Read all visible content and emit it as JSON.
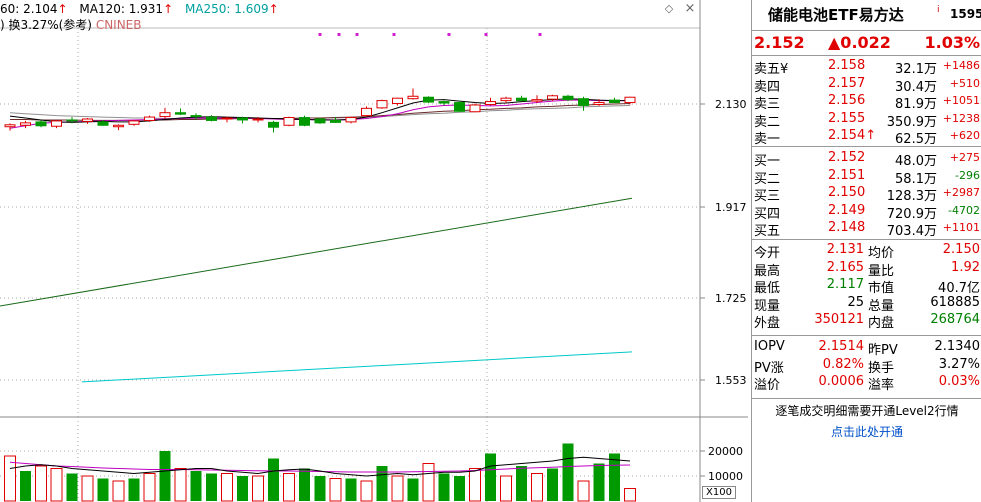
{
  "chart_header": {
    "ma60_label": "60: 2.104",
    "ma60_arrow": "↑",
    "ma120_label": "MA120: 1.931",
    "ma120_arrow": "↑",
    "ma250_label": "MA250: 1.609",
    "ma250_arrow": "↑",
    "turnover_label": ") 换3.27%(参考)",
    "index_label": "CNINEB",
    "diamond_icon": "diamond-icon",
    "close_icon": "close-icon"
  },
  "price_axis": [
    "2.130",
    "1.917",
    "1.725",
    "1.553"
  ],
  "volume_axis": [
    "20000",
    "10000"
  ],
  "volume_unit": "X100",
  "chart_data": {
    "type": "candlestick",
    "candles": [
      {
        "o": 2.083,
        "h": 2.09,
        "l": 2.075,
        "c": 2.087
      },
      {
        "o": 2.086,
        "h": 2.095,
        "l": 2.08,
        "c": 2.091
      },
      {
        "o": 2.093,
        "h": 2.096,
        "l": 2.082,
        "c": 2.085
      },
      {
        "o": 2.084,
        "h": 2.097,
        "l": 2.08,
        "c": 2.095
      },
      {
        "o": 2.097,
        "h": 2.103,
        "l": 2.09,
        "c": 2.095
      },
      {
        "o": 2.094,
        "h": 2.101,
        "l": 2.089,
        "c": 2.099
      },
      {
        "o": 2.093,
        "h": 2.097,
        "l": 2.085,
        "c": 2.086
      },
      {
        "o": 2.083,
        "h": 2.088,
        "l": 2.076,
        "c": 2.086
      },
      {
        "o": 2.088,
        "h": 2.097,
        "l": 2.085,
        "c": 2.095
      },
      {
        "o": 2.096,
        "h": 2.106,
        "l": 2.093,
        "c": 2.103
      },
      {
        "o": 2.104,
        "h": 2.122,
        "l": 2.099,
        "c": 2.112
      },
      {
        "o": 2.112,
        "h": 2.121,
        "l": 2.107,
        "c": 2.109
      },
      {
        "o": 2.106,
        "h": 2.111,
        "l": 2.098,
        "c": 2.104
      },
      {
        "o": 2.103,
        "h": 2.107,
        "l": 2.094,
        "c": 2.096
      },
      {
        "o": 2.099,
        "h": 2.104,
        "l": 2.092,
        "c": 2.101
      },
      {
        "o": 2.101,
        "h": 2.104,
        "l": 2.09,
        "c": 2.097
      },
      {
        "o": 2.097,
        "h": 2.103,
        "l": 2.092,
        "c": 2.099
      },
      {
        "o": 2.092,
        "h": 2.095,
        "l": 2.071,
        "c": 2.082
      },
      {
        "o": 2.086,
        "h": 2.104,
        "l": 2.084,
        "c": 2.102
      },
      {
        "o": 2.102,
        "h": 2.106,
        "l": 2.084,
        "c": 2.086
      },
      {
        "o": 2.099,
        "h": 2.101,
        "l": 2.089,
        "c": 2.091
      },
      {
        "o": 2.096,
        "h": 2.103,
        "l": 2.091,
        "c": 2.092
      },
      {
        "o": 2.093,
        "h": 2.104,
        "l": 2.09,
        "c": 2.102
      },
      {
        "o": 2.106,
        "h": 2.125,
        "l": 2.104,
        "c": 2.121
      },
      {
        "o": 2.122,
        "h": 2.139,
        "l": 2.12,
        "c": 2.137
      },
      {
        "o": 2.131,
        "h": 2.143,
        "l": 2.127,
        "c": 2.142
      },
      {
        "o": 2.141,
        "h": 2.162,
        "l": 2.139,
        "c": 2.146
      },
      {
        "o": 2.144,
        "h": 2.146,
        "l": 2.132,
        "c": 2.134
      },
      {
        "o": 2.135,
        "h": 2.137,
        "l": 2.127,
        "c": 2.132
      },
      {
        "o": 2.133,
        "h": 2.137,
        "l": 2.114,
        "c": 2.115
      },
      {
        "o": 2.114,
        "h": 2.131,
        "l": 2.113,
        "c": 2.128
      },
      {
        "o": 2.129,
        "h": 2.143,
        "l": 2.127,
        "c": 2.135
      },
      {
        "o": 2.137,
        "h": 2.145,
        "l": 2.132,
        "c": 2.142
      },
      {
        "o": 2.142,
        "h": 2.147,
        "l": 2.136,
        "c": 2.137
      },
      {
        "o": 2.136,
        "h": 2.148,
        "l": 2.132,
        "c": 2.139
      },
      {
        "o": 2.14,
        "h": 2.149,
        "l": 2.136,
        "c": 2.147
      },
      {
        "o": 2.146,
        "h": 2.149,
        "l": 2.136,
        "c": 2.139
      },
      {
        "o": 2.141,
        "h": 2.145,
        "l": 2.116,
        "c": 2.127
      },
      {
        "o": 2.129,
        "h": 2.14,
        "l": 2.126,
        "c": 2.133
      },
      {
        "o": 2.138,
        "h": 2.143,
        "l": 2.132,
        "c": 2.133
      },
      {
        "o": 2.133,
        "h": 2.145,
        "l": 2.129,
        "c": 2.144
      }
    ],
    "ma_short": [
      2.105,
      2.101,
      2.097,
      2.093,
      2.092,
      2.093,
      2.094,
      2.093,
      2.093,
      2.095,
      2.098,
      2.101,
      2.103,
      2.104,
      2.103,
      2.102,
      2.101,
      2.1,
      2.099,
      2.098,
      2.097,
      2.097,
      2.098,
      2.103,
      2.112,
      2.122,
      2.132,
      2.138,
      2.139,
      2.136,
      2.133,
      2.131,
      2.132,
      2.135,
      2.137,
      2.139,
      2.141,
      2.14,
      2.138,
      2.137,
      2.137
    ],
    "ma_mid": [
      2.098,
      2.098,
      2.097,
      2.097,
      2.097,
      2.096,
      2.096,
      2.096,
      2.096,
      2.097,
      2.097,
      2.098,
      2.098,
      2.099,
      2.099,
      2.1,
      2.1,
      2.1,
      2.1,
      2.101,
      2.101,
      2.102,
      2.103,
      2.104,
      2.106,
      2.108,
      2.111,
      2.113,
      2.115,
      2.116,
      2.118,
      2.119,
      2.121,
      2.122,
      2.124,
      2.125,
      2.127,
      2.128,
      2.129,
      2.13,
      2.131
    ],
    "ma_purple": [
      2.08,
      2.085,
      2.09,
      2.092,
      2.093,
      2.094,
      2.095,
      2.096,
      2.097,
      2.098,
      2.099,
      2.1,
      2.101,
      2.101,
      2.101,
      2.101,
      2.1,
      2.099,
      2.098,
      2.098,
      2.098,
      2.097,
      2.098,
      2.1,
      2.104,
      2.11,
      2.118,
      2.124,
      2.127,
      2.128,
      2.127,
      2.126,
      2.127,
      2.13,
      2.133,
      2.136,
      2.138,
      2.138,
      2.137,
      2.137,
      2.137
    ],
    "ma_gray": [
      2.112,
      2.11,
      2.108,
      2.106,
      2.105,
      2.104,
      2.103,
      2.102,
      2.101,
      2.101,
      2.1,
      2.1,
      2.1,
      2.1,
      2.1,
      2.1,
      2.1,
      2.1,
      2.1,
      2.101,
      2.101,
      2.101,
      2.102,
      2.103,
      2.104,
      2.106,
      2.108,
      2.11,
      2.111,
      2.113,
      2.114,
      2.116,
      2.117,
      2.119,
      2.12,
      2.121,
      2.122,
      2.124,
      2.125,
      2.126,
      2.127
    ],
    "ma120_line": {
      "start": 1.725,
      "end": 1.935
    },
    "ma250_line": {
      "start": 1.549,
      "end": 1.612
    },
    "volumes": [
      18000,
      12000,
      14000,
      13000,
      11000,
      10000,
      9000,
      8000,
      9000,
      11000,
      20000,
      13000,
      12000,
      11000,
      11000,
      10000,
      10000,
      17000,
      11000,
      13000,
      10000,
      9000,
      9000,
      8000,
      14000,
      10000,
      9000,
      15000,
      11000,
      10000,
      13000,
      19000,
      10000,
      14000,
      11000,
      13000,
      23000,
      8000,
      15000,
      19000,
      5000
    ],
    "vol_ma1": [
      13000,
      14000,
      14500,
      14000,
      13000,
      12500,
      12000,
      11500,
      11000,
      11500,
      12000,
      12500,
      13000,
      13000,
      12000,
      11500,
      11000,
      12000,
      12500,
      12800,
      12000,
      11000,
      10500,
      10000,
      10500,
      11000,
      10500,
      11000,
      11500,
      11500,
      12000,
      14000,
      14500,
      15000,
      15500,
      16000,
      17000,
      17500,
      17000,
      16500,
      16000
    ],
    "vol_ma2": [
      15500,
      15000,
      14500,
      14000,
      13800,
      13500,
      13200,
      13000,
      12800,
      12600,
      12600,
      12600,
      12500,
      12400,
      12300,
      12200,
      12100,
      12000,
      12000,
      11900,
      11800,
      11700,
      11600,
      11600,
      11600,
      11600,
      11700,
      11800,
      11900,
      12000,
      12200,
      12500,
      12800,
      13100,
      13300,
      13500,
      13800,
      14000,
      14200,
      14300,
      14400
    ],
    "volume_colors": [
      "red",
      "green",
      "red",
      "red",
      "green",
      "red",
      "green",
      "red",
      "green",
      "red",
      "green",
      "red",
      "green",
      "green",
      "red",
      "green",
      "red",
      "green",
      "red",
      "green",
      "green",
      "red",
      "green",
      "red",
      "green",
      "red",
      "green",
      "red",
      "green",
      "green",
      "red",
      "green",
      "red",
      "green",
      "red",
      "green",
      "green",
      "red",
      "green",
      "green",
      "red"
    ],
    "purple_markers": [
      320,
      339,
      357,
      394,
      449,
      486,
      540
    ]
  },
  "quote": {
    "title": "储能电池ETF易方达",
    "info_icon": "i",
    "code": "1595",
    "price": "2.152",
    "change": "▲0.022",
    "change_pct": "1.03%",
    "sell": [
      {
        "label": "卖五",
        "extra": "¥",
        "price": "2.158",
        "vol": "32.1",
        "unit": "万",
        "chg": "+1486"
      },
      {
        "label": "卖四",
        "extra": "",
        "price": "2.157",
        "vol": "30.4",
        "unit": "万",
        "chg": "+510"
      },
      {
        "label": "卖三",
        "extra": "",
        "price": "2.156",
        "vol": "81.9",
        "unit": "万",
        "chg": "+1051"
      },
      {
        "label": "卖二",
        "extra": "",
        "price": "2.155",
        "vol": "350.9",
        "unit": "万",
        "chg": "+1238"
      },
      {
        "label": "卖一",
        "extra": "",
        "price": "2.154↑",
        "vol": "62.5",
        "unit": "万",
        "chg": "+620"
      }
    ],
    "buy": [
      {
        "label": "买一",
        "price": "2.152",
        "vol": "48.0",
        "unit": "万",
        "chg": "+275"
      },
      {
        "label": "买二",
        "price": "2.151",
        "vol": "58.1",
        "unit": "万",
        "chg": "-296"
      },
      {
        "label": "买三",
        "price": "2.150",
        "vol": "128.3",
        "unit": "万",
        "chg": "+2987"
      },
      {
        "label": "买四",
        "price": "2.149",
        "vol": "720.9",
        "unit": "万",
        "chg": "-4702"
      },
      {
        "label": "买五",
        "price": "2.148",
        "vol": "703.4",
        "unit": "万",
        "chg": "+1101"
      }
    ],
    "stats": [
      {
        "l1": "今开",
        "v1": "2.131",
        "l2": "均价",
        "v2": "2.150",
        "c1": "red",
        "c2": "red"
      },
      {
        "l1": "最高",
        "v1": "2.165",
        "l2": "量比",
        "v2": "1.92",
        "c1": "red",
        "c2": "red"
      },
      {
        "l1": "最低",
        "v1": "2.117",
        "l2": "市值",
        "v2": "40.7亿",
        "c1": "green",
        "c2": "black"
      },
      {
        "l1": "现量",
        "v1": "25",
        "l2": "总量",
        "v2": "618885",
        "c1": "black",
        "c2": "black"
      },
      {
        "l1": "外盘",
        "v1": "350121",
        "l2": "内盘",
        "v2": "268764",
        "c1": "red",
        "c2": "green"
      }
    ],
    "iopv": [
      {
        "l1": "IOPV",
        "v1": "2.1514",
        "l2": "昨PV",
        "v2": "2.1340",
        "c1": "red",
        "c2": "black"
      },
      {
        "l1": "PV涨",
        "v1": "0.82%",
        "l2": "换手",
        "v2": "3.27%",
        "c1": "red",
        "c2": "black"
      },
      {
        "l1": "溢价",
        "v1": "0.0006",
        "l2": "溢率",
        "v2": "0.03%",
        "c1": "red",
        "c2": "red"
      }
    ],
    "level2_msg": "逐笔成交明细需要开通Level2行情",
    "level2_link": "点击此处开通"
  }
}
